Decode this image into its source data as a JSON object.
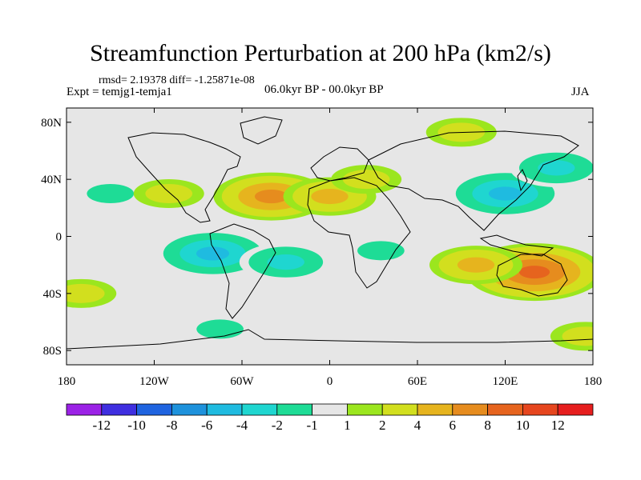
{
  "chart_data": {
    "type": "heatmap",
    "title": "Streamfunction Perturbation at 200 hPa (km2/s)",
    "stats_line": "rmsd= 2.19378 diff= -1.25871e-08",
    "left_subtitle": "Expt = temjg1-temja1",
    "center_subtitle": "06.0kyr BP - 00.0kyr BP",
    "right_subtitle": "JJA",
    "x_range": [
      -180,
      180
    ],
    "y_range": [
      -90,
      90
    ],
    "x_ticks": [
      {
        "value": -180,
        "label": "180"
      },
      {
        "value": -120,
        "label": "120W"
      },
      {
        "value": -60,
        "label": "60W"
      },
      {
        "value": 0,
        "label": "0"
      },
      {
        "value": 60,
        "label": "60E"
      },
      {
        "value": 120,
        "label": "120E"
      },
      {
        "value": 180,
        "label": "180"
      }
    ],
    "y_ticks": [
      {
        "value": 80,
        "label": "80N"
      },
      {
        "value": 40,
        "label": "40N"
      },
      {
        "value": 0,
        "label": "0"
      },
      {
        "value": -40,
        "label": "40S"
      },
      {
        "value": -80,
        "label": "80S"
      }
    ],
    "colorbar": {
      "labels": [
        "-12",
        "-10",
        "-8",
        "-6",
        "-4",
        "-2",
        "-1",
        "1",
        "2",
        "4",
        "6",
        "8",
        "10",
        "12"
      ],
      "colors": [
        "#9b22e6",
        "#3f2fe0",
        "#1f64e0",
        "#1e92dc",
        "#1fbbe0",
        "#1fd6d0",
        "#1edc96",
        "#e6e6e6",
        "#9be61e",
        "#d2df1e",
        "#e6b41e",
        "#e68c1e",
        "#e6641e",
        "#e6461e",
        "#e61e1e"
      ]
    },
    "field_centers": [
      {
        "lon": -150,
        "lat": 30,
        "value": -2
      },
      {
        "lon": -110,
        "lat": 30,
        "value": 2
      },
      {
        "lon": -40,
        "lat": 28,
        "value": 6
      },
      {
        "lon": 0,
        "lat": 28,
        "value": 4
      },
      {
        "lon": 120,
        "lat": 30,
        "value": -6
      },
      {
        "lon": 155,
        "lat": 48,
        "value": -4
      },
      {
        "lon": 25,
        "lat": 40,
        "value": 2
      },
      {
        "lon": 90,
        "lat": 73,
        "value": 2
      },
      {
        "lon": -80,
        "lat": -12,
        "value": -6
      },
      {
        "lon": -30,
        "lat": -18,
        "value": -4
      },
      {
        "lon": 35,
        "lat": -10,
        "value": -2
      },
      {
        "lon": -170,
        "lat": -40,
        "value": 2
      },
      {
        "lon": 140,
        "lat": -25,
        "value": 8
      },
      {
        "lon": 100,
        "lat": -20,
        "value": 4
      },
      {
        "lon": -75,
        "lat": -65,
        "value": -2
      },
      {
        "lon": 175,
        "lat": -70,
        "value": 2
      }
    ]
  }
}
